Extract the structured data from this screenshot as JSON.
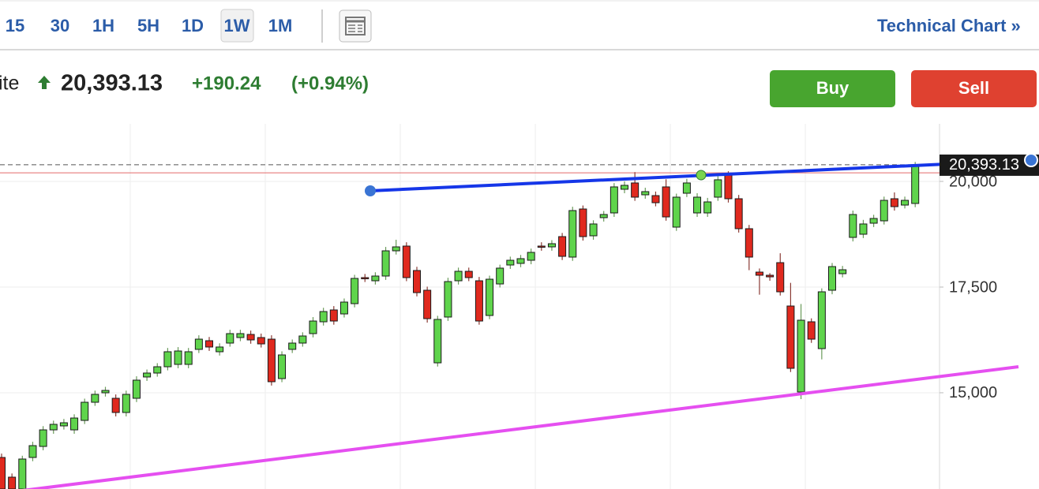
{
  "toolbar": {
    "intervals": [
      "15",
      "30",
      "1H",
      "5H",
      "1D",
      "1W",
      "1M"
    ],
    "selected": "1W",
    "title": "Technical Chart »"
  },
  "quote": {
    "name": "ite",
    "price": "20,393.13",
    "change": "+190.24",
    "change_percent": "(+0.94%)"
  },
  "actions": {
    "buy": "Buy",
    "sell": "Sell"
  },
  "chart_data": {
    "type": "candlestick",
    "up_color": "#5fd44c",
    "down_color": "#e0291e",
    "open": [
      13469,
      13003,
      12723,
      13469,
      13730,
      14122,
      14216,
      14122,
      14346,
      14775,
      14999,
      14869,
      14533,
      14869,
      15373,
      15466,
      15615,
      15671,
      15671,
      16026,
      16231,
      15970,
      16175,
      16306,
      16380,
      16306,
      16268,
      15335,
      16026,
      16175,
      16399,
      16679,
      16959,
      16865,
      17108,
      17724,
      17649,
      17761,
      18358,
      18470,
      17892,
      17425,
      15708,
      16791,
      17649,
      17873,
      17649,
      16828,
      17574,
      18022,
      18060,
      18134,
      18470,
      18451,
      18694,
      18209,
      19347,
      18713,
      19142,
      19254,
      19814,
      19963,
      19683,
      19664,
      19870,
      18918,
      19720,
      19254,
      19254,
      19627,
      20149,
      19590,
      18881,
      17854,
      17780,
      18078,
      17052,
      15018,
      16679,
      16044,
      17425,
      17817,
      18675,
      18750,
      19011,
      19067,
      19590,
      19440,
      19478
    ],
    "high": [
      13560,
      13090,
      13510,
      13840,
      14210,
      14340,
      14380,
      14490,
      14860,
      15050,
      15140,
      14960,
      15050,
      15390,
      15550,
      15700,
      16060,
      16080,
      16060,
      16360,
      16320,
      16170,
      16490,
      16490,
      16470,
      16400,
      16360,
      15980,
      16260,
      16430,
      16790,
      17010,
      17050,
      17230,
      17790,
      17810,
      17850,
      18450,
      18620,
      18560,
      17980,
      17510,
      16820,
      17720,
      17960,
      17960,
      17740,
      17770,
      18030,
      18220,
      18260,
      18410,
      18560,
      18610,
      18780,
      19400,
      19430,
      19080,
      19300,
      19960,
      20000,
      20220,
      19850,
      19760,
      20050,
      19710,
      20060,
      19720,
      19610,
      20120,
      20240,
      19680,
      18970,
      17940,
      17830,
      18300,
      17600,
      17100,
      16760,
      17470,
      18070,
      18000,
      19310,
      19090,
      19210,
      19640,
      19740,
      19640,
      20460
    ],
    "low": [
      12640,
      12640,
      12640,
      13380,
      13640,
      14030,
      14130,
      14030,
      14260,
      14690,
      14910,
      14440,
      14440,
      14780,
      15280,
      15380,
      15530,
      15580,
      15580,
      15940,
      15990,
      15880,
      16090,
      16220,
      16160,
      16070,
      15170,
      15250,
      15940,
      16090,
      16310,
      16590,
      16610,
      16780,
      17020,
      17620,
      17560,
      17670,
      18270,
      17640,
      17280,
      16660,
      15620,
      16700,
      17560,
      17640,
      16610,
      16740,
      17490,
      17930,
      17970,
      18040,
      18360,
      18360,
      18140,
      18120,
      18600,
      18620,
      19050,
      19160,
      19720,
      19540,
      19590,
      19410,
      19070,
      18830,
      19630,
      19160,
      19160,
      19540,
      19500,
      18790,
      17900,
      17320,
      17650,
      17300,
      15490,
      14850,
      16180,
      15790,
      17330,
      17730,
      18580,
      18660,
      18920,
      18980,
      19310,
      19360,
      19390
    ],
    "close": [
      12723,
      12723,
      13432,
      13749,
      14122,
      14253,
      14290,
      14402,
      14775,
      14962,
      15055,
      14533,
      14962,
      15298,
      15466,
      15615,
      15970,
      15988,
      15970,
      16268,
      16082,
      16082,
      16399,
      16399,
      16250,
      16156,
      15261,
      15895,
      16175,
      16343,
      16697,
      16921,
      16697,
      17145,
      17705,
      17705,
      17761,
      18358,
      18451,
      17724,
      17369,
      16753,
      16735,
      17630,
      17873,
      17724,
      16697,
      17686,
      17948,
      18134,
      18172,
      18321,
      18451,
      18526,
      18227,
      19310,
      18694,
      18993,
      19217,
      19870,
      19907,
      19627,
      19758,
      19496,
      19160,
      19627,
      19963,
      19627,
      19515,
      20038,
      19590,
      18881,
      18209,
      17780,
      17742,
      17388,
      15578,
      16716,
      16268,
      17388,
      17985,
      17910,
      19217,
      18993,
      19123,
      19552,
      19403,
      19552,
      20393.13
    ],
    "ylim": [
      12723,
      21362
    ],
    "yticks": [
      {
        "value": 15000,
        "label": "15,000"
      },
      {
        "value": 17500,
        "label": "17,500"
      },
      {
        "value": 20000,
        "label": "20,000"
      }
    ],
    "last_price": {
      "value": 20393.13,
      "label": "20,393.13"
    },
    "previous_close": 20202.89,
    "grid": true
  }
}
